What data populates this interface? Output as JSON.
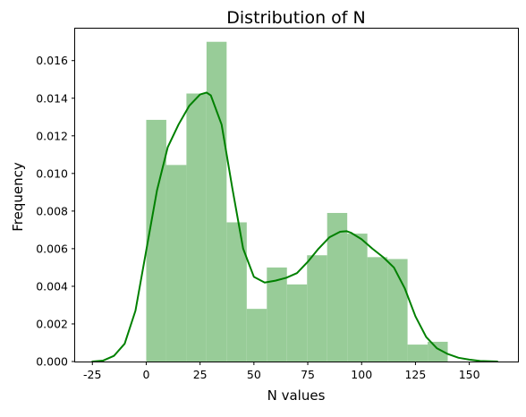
{
  "chart_data": {
    "type": "histogram",
    "title": "Distribution of N",
    "xlabel": "N values",
    "ylabel": "Frequency",
    "xlim": [
      -33,
      173
    ],
    "ylim": [
      0,
      0.0177
    ],
    "xticks": [
      -25,
      0,
      25,
      50,
      75,
      100,
      125,
      150
    ],
    "yticks": [
      0.0,
      0.002,
      0.004,
      0.006,
      0.008,
      0.01,
      0.012,
      0.014,
      0.016
    ],
    "ytick_labels": [
      "0.000",
      "0.002",
      "0.004",
      "0.006",
      "0.008",
      "0.010",
      "0.012",
      "0.014",
      "0.016"
    ],
    "colors": {
      "bars": "#98cc98",
      "kde": "#008000"
    },
    "grid": false,
    "bins": [
      {
        "x0": 0.0,
        "x1": 9.33,
        "height": 0.01285
      },
      {
        "x0": 9.33,
        "x1": 18.67,
        "height": 0.01045
      },
      {
        "x0": 18.67,
        "x1": 28.0,
        "height": 0.01425
      },
      {
        "x0": 28.0,
        "x1": 37.33,
        "height": 0.017
      },
      {
        "x0": 37.33,
        "x1": 46.67,
        "height": 0.0074
      },
      {
        "x0": 46.67,
        "x1": 56.0,
        "height": 0.0028
      },
      {
        "x0": 56.0,
        "x1": 65.33,
        "height": 0.005
      },
      {
        "x0": 65.33,
        "x1": 74.67,
        "height": 0.0041
      },
      {
        "x0": 74.67,
        "x1": 84.0,
        "height": 0.00565
      },
      {
        "x0": 84.0,
        "x1": 93.33,
        "height": 0.0079
      },
      {
        "x0": 93.33,
        "x1": 102.67,
        "height": 0.0068
      },
      {
        "x0": 102.67,
        "x1": 112.0,
        "height": 0.00555
      },
      {
        "x0": 112.0,
        "x1": 121.33,
        "height": 0.00545
      },
      {
        "x0": 121.33,
        "x1": 130.67,
        "height": 0.0009
      },
      {
        "x0": 130.67,
        "x1": 140.0,
        "height": 0.00105
      }
    ],
    "kde": {
      "x": [
        -25,
        -20,
        -15,
        -10,
        -5,
        0,
        5,
        10,
        15,
        20,
        25,
        28,
        30,
        35,
        40,
        45,
        50,
        55,
        60,
        65,
        70,
        75,
        80,
        85,
        90,
        93,
        95,
        100,
        105,
        110,
        115,
        120,
        125,
        130,
        135,
        140,
        145,
        150,
        155,
        163
      ],
      "y": [
        0.0,
        5e-05,
        0.0003,
        0.00095,
        0.0027,
        0.0059,
        0.0091,
        0.0114,
        0.0126,
        0.0136,
        0.0142,
        0.0143,
        0.01415,
        0.0126,
        0.0092,
        0.006,
        0.0045,
        0.0042,
        0.0043,
        0.00445,
        0.0047,
        0.0053,
        0.006,
        0.0066,
        0.0069,
        0.00693,
        0.00685,
        0.0065,
        0.006,
        0.00555,
        0.005,
        0.0039,
        0.0024,
        0.0013,
        0.0007,
        0.0004,
        0.0002,
        0.0001,
        3e-05,
        0.0
      ]
    }
  }
}
